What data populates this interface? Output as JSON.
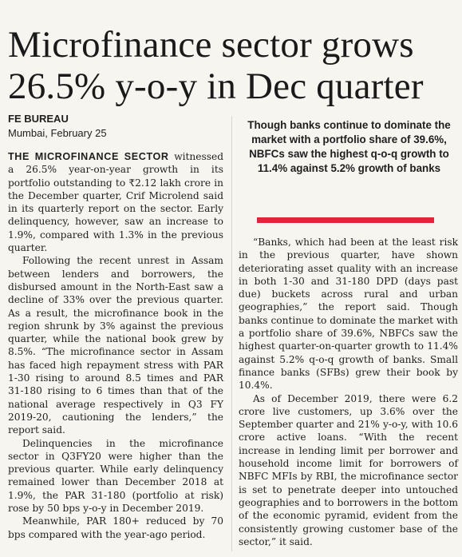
{
  "headline": {
    "line1": "Microfinance sector grows",
    "line2": "26.5% y-o-y in Dec quarter"
  },
  "byline": {
    "bureau": "FE BUREAU",
    "dateline": "Mumbai, February 25"
  },
  "pull_quote": {
    "text": "Though banks continue to dominate the market with a portfolio share of 39.6%, NBFCs saw the highest q-o-q growth to 11.4% against 5.2% growth of banks",
    "bar_color": "#e0243a"
  },
  "left_column": {
    "lead": "THE MICROFINANCE SECTOR",
    "p1_rest": " witnessed a 26.5% year-on-year growth in its portfolio outstanding to ₹2.12 lakh crore in the December quarter, Crif Microlend said in its quarterly report on the sector. Early delinquency, however, saw an increase to 1.9%, compared with 1.3% in the previous quarter.",
    "p2": "Following the recent unrest in Assam between lenders and borrowers, the disbursed amount in the North-East saw a decline of 33% over the previous quarter. As a result, the microfinance book in the region shrunk by 3% against the previous quarter, while the national book grew by 8.5%. “The microfinance sector in Assam has faced high repayment stress with PAR 1-30 rising to around 8.5 times and PAR 31-180 rising to 6 times than that of the national average respectively in Q3 FY 2019-20, cautioning the lenders,” the report said.",
    "p3": "Delinquencies in the microfinance sector in Q3FY20 were higher than the previous quarter. While early delinquency remained lower than December 2018 at 1.9%, the PAR 31-180 (portfolio at risk) rose by 50 bps y-o-y in December 2019.",
    "p4": "Meanwhile, PAR 180+ reduced by 70 bps compared with the year-ago period."
  },
  "right_column": {
    "p1": "“Banks, which had been at the least risk in the previous quarter, have shown deteriorating asset quality with an increase in both 1-30 and 31-180 DPD (days past due) buckets across rural and urban geographies,” the report said. Though banks continue to dominate the market with a portfolio share of 39.6%, NBFCs saw the highest quarter-on-quarter growth to 11.4% against 5.2% q-o-q growth of banks. Small finance banks (SFBs) grew their book by 10.4%.",
    "p2": "As of December 2019, there were 6.2 crore live customers, up 3.6% over the September quarter and 21% y-o-y, with 10.6 crore active loans. “With the recent increase in lending limit per borrower and household income limit for borrowers of NBFC MFIs by RBI, the microfinance sector is set to penetrate deeper into untouched geographies and to borrowers in the bottom of the economic pyramid, evident from the consistently growing customer base of the sector,” it said."
  }
}
